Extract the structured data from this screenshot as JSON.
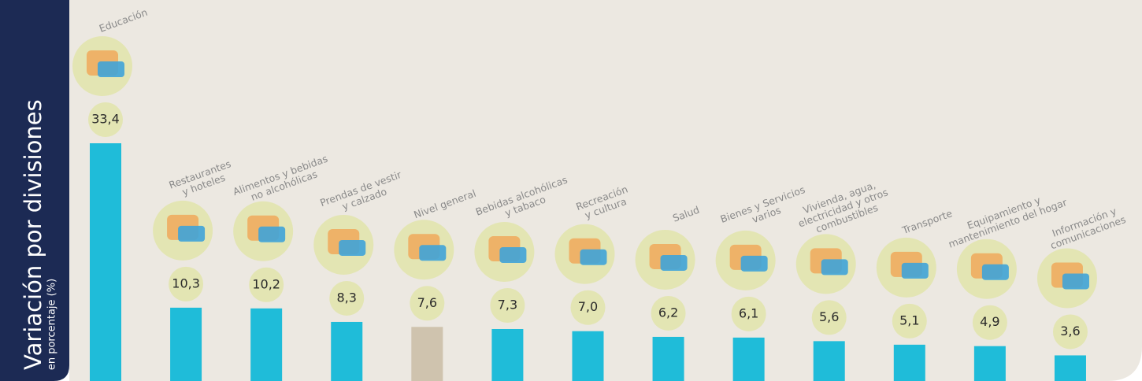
{
  "chart_data": {
    "type": "bar",
    "title": "Variación por divisiones",
    "subtitle": "en porcentaje (%)",
    "categories": [
      "Educación",
      "Restaurantes\ny hoteles",
      "Alimentos y bebidas\nno alcohólicas",
      "Prendas de vestir\ny calzado",
      "Nivel general",
      "Bebidas alcohólicas\ny tabaco",
      "Recreación\ny cultura",
      "Salud",
      "Bienes y Servicios\nvarios",
      "Vivienda, agua,\nelectricidad y otros\ncombustibles",
      "Transporte",
      "Equipamiento y\nmantenimiento del hogar",
      "Información y\ncomunicaciones"
    ],
    "values": [
      33.4,
      10.3,
      10.2,
      8.3,
      7.6,
      7.3,
      7.0,
      6.2,
      6.1,
      5.6,
      5.1,
      4.9,
      3.6
    ],
    "value_labels": [
      "33,4",
      "10,3",
      "10,2",
      "8,3",
      "7,6",
      "7,3",
      "7,0",
      "6,2",
      "6,1",
      "5,6",
      "5,1",
      "4,9",
      "3,6"
    ],
    "colors": [
      "#1fbcd9",
      "#1fbcd9",
      "#1fbcd9",
      "#1fbcd9",
      "#cfc3ae",
      "#1fbcd9",
      "#1fbcd9",
      "#1fbcd9",
      "#1fbcd9",
      "#1fbcd9",
      "#1fbcd9",
      "#1fbcd9",
      "#1fbcd9"
    ]
  }
}
